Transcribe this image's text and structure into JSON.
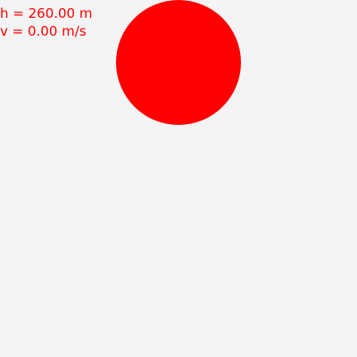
{
  "hud": {
    "height_text": "h = 260.00 m",
    "velocity_text": "v = 0.00 m/s"
  },
  "ball": {
    "color": "#ff0000"
  },
  "colors": {
    "background": "#f4f4f4",
    "text": "#ff0000"
  }
}
